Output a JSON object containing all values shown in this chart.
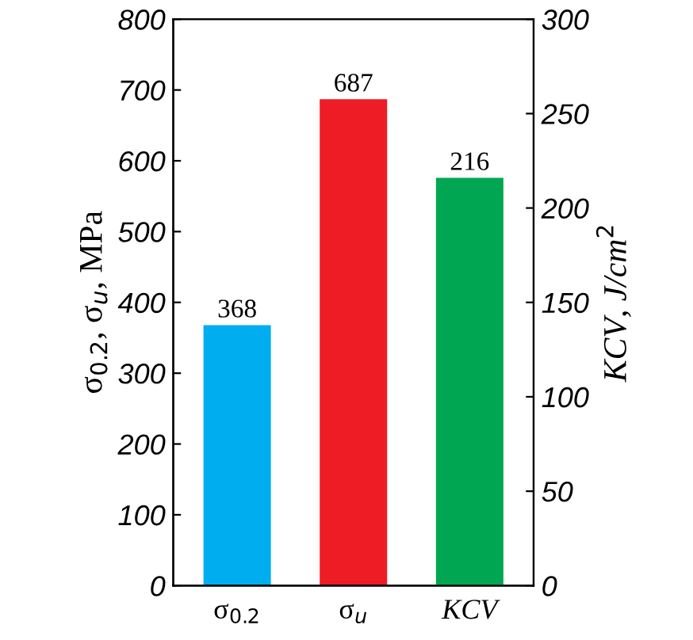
{
  "chart_data": {
    "type": "bar",
    "categories": [
      "σ$_{0.2}$",
      "σ$_{u}$",
      "KCV"
    ],
    "series": [
      {
        "colors": [
          "#00aeef",
          "#ee1c25",
          null
        ],
        "values": [
          368,
          687,
          null
        ]
      },
      {
        "axis": "y2",
        "colors": [
          null,
          null,
          "#00a651"
        ],
        "values": [
          null,
          null,
          216
        ]
      }
    ],
    "ylabel": "σ$_{0.2}$, σ$_{u}$, MPa",
    "y2label": "KCV, J/cm$^{2}$",
    "ylim": [
      0,
      800
    ],
    "yticks": [
      0,
      100,
      200,
      300,
      400,
      500,
      600,
      700,
      800
    ],
    "y2lim": [
      0,
      300
    ],
    "y2ticks": [
      0,
      50,
      100,
      150,
      200,
      250,
      300
    ],
    "data_labels": true,
    "grid": false,
    "legend": false
  }
}
